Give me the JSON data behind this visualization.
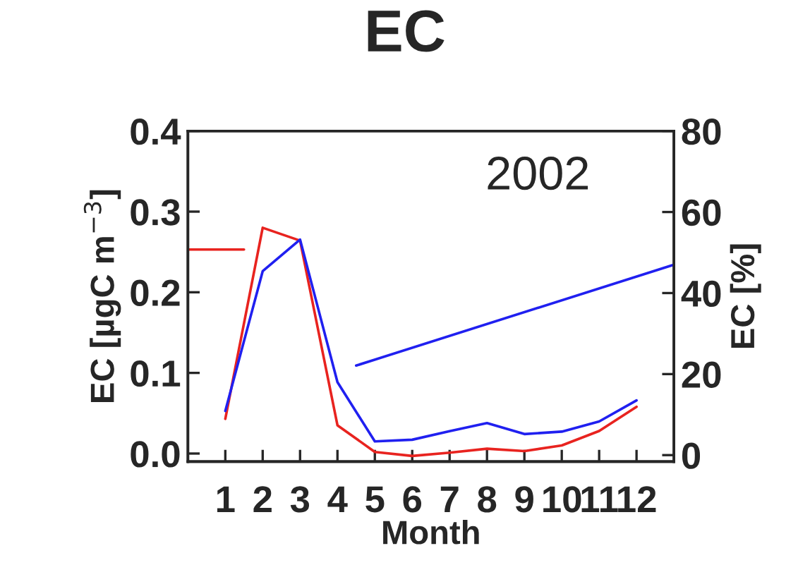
{
  "chart_data": {
    "type": "line",
    "title": "EC",
    "xlabel": "Month",
    "ylabel": "EC [µgC m$^{−3}$]",
    "y2label": "EC [%]",
    "annotations": [
      "2002"
    ],
    "xlim": [
      0,
      13
    ],
    "xticks": [
      1,
      2,
      3,
      4,
      5,
      6,
      7,
      8,
      9,
      10,
      11,
      12
    ],
    "ylim": [
      -0.01,
      0.4
    ],
    "yticks": [
      {
        "value": 0,
        "label": "0.0"
      },
      0.1,
      0.2,
      0.3,
      0.4
    ],
    "y2lim": [
      -1.6,
      80
    ],
    "y2ticks": [
      0,
      20,
      40,
      60,
      80
    ],
    "grid": false,
    "legend": false,
    "marker": "none",
    "line_style": "solid",
    "series": [
      {
        "color": "#e8231f",
        "x": [
          1,
          2,
          3,
          4,
          5,
          6,
          7,
          8,
          9,
          10,
          11,
          12
        ],
        "values": [
          0.043,
          0.28,
          0.264,
          0.035,
          0.002,
          -0.003,
          0.001,
          0.006,
          0.003,
          0.01,
          0.028,
          0.058
        ]
      },
      {
        "color": "#2020f0",
        "axis": "y2",
        "x": [
          1,
          2,
          3,
          4,
          5,
          6,
          7,
          8,
          9,
          10,
          11,
          12
        ],
        "values": [
          10.9,
          45.4,
          53.2,
          18,
          3.4,
          3.8,
          5.9,
          7.9,
          5.2,
          5.8,
          8.3,
          13.5
        ]
      },
      {
        "color": "#e8231f",
        "x": [
          0,
          1.5
        ],
        "values": [
          0.253,
          0.253
        ]
      },
      {
        "color": "#2020f0",
        "axis": "y2",
        "x": [
          4.5,
          13
        ],
        "values": [
          22.1,
          47
        ]
      }
    ]
  }
}
